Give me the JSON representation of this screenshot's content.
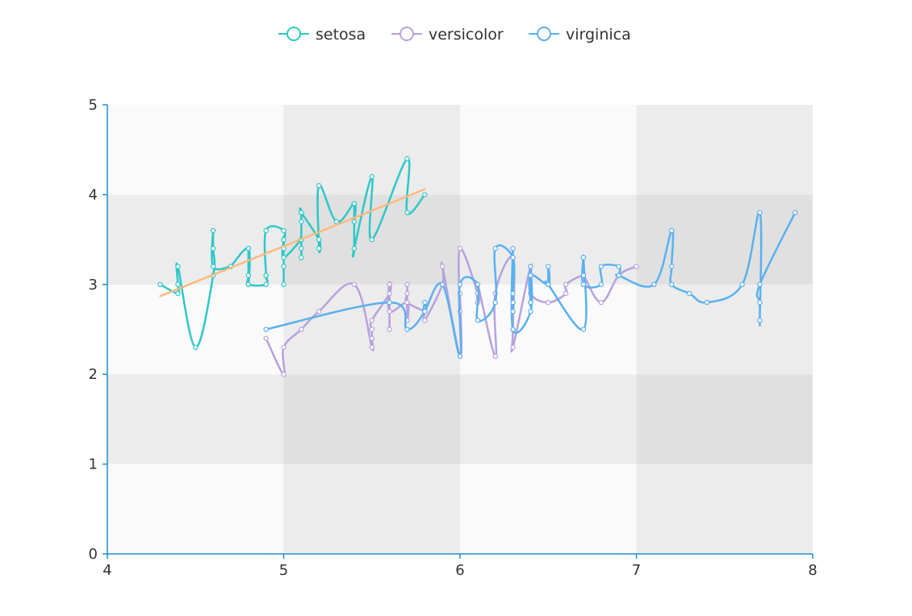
{
  "chart_data": {
    "type": "line",
    "title": "",
    "xlabel": "",
    "ylabel": "",
    "xlim": [
      4,
      8
    ],
    "ylim": [
      0,
      5
    ],
    "x_ticks": [
      "4",
      "5",
      "6",
      "7",
      "8"
    ],
    "y_ticks": [
      "0",
      "1",
      "2",
      "3",
      "4",
      "5"
    ],
    "grid": "alternating checkerboard cell shading",
    "legend_position": "top-center",
    "colors": {
      "setosa": "#2ec7c9",
      "versicolor": "#b6a2de",
      "virginica": "#5ab1ef",
      "trend": "#ffb980",
      "axis": "#1e90c8",
      "axis_text": "#333333",
      "cell_a": "#fafafa",
      "cell_b": "#ececec",
      "cell_c": "#e0e0e0"
    },
    "series": [
      {
        "name": "setosa",
        "points": [
          [
            5.1,
            3.5
          ],
          [
            4.9,
            3.0
          ],
          [
            4.7,
            3.2
          ],
          [
            4.6,
            3.1
          ],
          [
            5.0,
            3.6
          ],
          [
            5.4,
            3.9
          ],
          [
            4.6,
            3.4
          ],
          [
            5.0,
            3.4
          ],
          [
            4.4,
            2.9
          ],
          [
            4.9,
            3.1
          ],
          [
            5.4,
            3.7
          ],
          [
            4.8,
            3.4
          ],
          [
            4.8,
            3.0
          ],
          [
            4.3,
            3.0
          ],
          [
            5.8,
            4.0
          ],
          [
            5.7,
            4.4
          ],
          [
            5.4,
            3.9
          ],
          [
            5.1,
            3.5
          ],
          [
            5.7,
            3.8
          ],
          [
            5.1,
            3.8
          ],
          [
            5.4,
            3.4
          ],
          [
            5.1,
            3.7
          ],
          [
            4.6,
            3.6
          ],
          [
            5.1,
            3.3
          ],
          [
            4.8,
            3.4
          ],
          [
            5.0,
            3.0
          ],
          [
            5.0,
            3.4
          ],
          [
            5.2,
            3.5
          ],
          [
            5.2,
            3.4
          ],
          [
            4.7,
            3.2
          ],
          [
            4.8,
            3.1
          ],
          [
            5.4,
            3.4
          ],
          [
            5.2,
            4.1
          ],
          [
            5.5,
            4.2
          ],
          [
            4.9,
            3.1
          ],
          [
            5.0,
            3.2
          ],
          [
            5.5,
            3.5
          ],
          [
            4.9,
            3.6
          ],
          [
            4.4,
            3.0
          ],
          [
            5.1,
            3.4
          ],
          [
            5.0,
            3.5
          ],
          [
            4.5,
            2.3
          ],
          [
            4.4,
            3.2
          ],
          [
            5.0,
            3.5
          ],
          [
            5.1,
            3.8
          ],
          [
            4.8,
            3.0
          ],
          [
            5.1,
            3.8
          ],
          [
            4.6,
            3.2
          ],
          [
            5.3,
            3.7
          ],
          [
            5.0,
            3.3
          ]
        ]
      },
      {
        "name": "versicolor",
        "points": [
          [
            7.0,
            3.2
          ],
          [
            6.4,
            3.2
          ],
          [
            6.9,
            3.1
          ],
          [
            5.5,
            2.3
          ],
          [
            6.5,
            2.8
          ],
          [
            5.7,
            2.8
          ],
          [
            6.3,
            3.3
          ],
          [
            4.9,
            2.4
          ],
          [
            6.6,
            2.9
          ],
          [
            5.2,
            2.7
          ],
          [
            5.0,
            2.0
          ],
          [
            5.9,
            3.0
          ],
          [
            6.0,
            2.2
          ],
          [
            6.1,
            2.9
          ],
          [
            5.6,
            2.9
          ],
          [
            6.7,
            3.1
          ],
          [
            5.6,
            3.0
          ],
          [
            5.8,
            2.7
          ],
          [
            6.2,
            2.2
          ],
          [
            5.6,
            2.5
          ],
          [
            5.9,
            3.2
          ],
          [
            6.1,
            2.8
          ],
          [
            6.3,
            2.5
          ],
          [
            6.1,
            2.8
          ],
          [
            6.4,
            2.9
          ],
          [
            6.6,
            3.0
          ],
          [
            6.8,
            2.8
          ],
          [
            6.7,
            3.0
          ],
          [
            6.0,
            2.9
          ],
          [
            5.7,
            2.6
          ],
          [
            5.5,
            2.4
          ],
          [
            5.5,
            2.4
          ],
          [
            5.8,
            2.7
          ],
          [
            6.0,
            2.7
          ],
          [
            5.4,
            3.0
          ],
          [
            6.0,
            3.4
          ],
          [
            6.7,
            3.1
          ],
          [
            6.3,
            2.3
          ],
          [
            5.6,
            3.0
          ],
          [
            5.5,
            2.5
          ],
          [
            5.5,
            2.6
          ],
          [
            6.1,
            3.0
          ],
          [
            5.8,
            2.6
          ],
          [
            5.0,
            2.3
          ],
          [
            5.6,
            2.7
          ],
          [
            5.7,
            3.0
          ],
          [
            5.7,
            2.9
          ],
          [
            6.2,
            2.9
          ],
          [
            5.1,
            2.5
          ],
          [
            5.7,
            2.8
          ]
        ]
      },
      {
        "name": "virginica",
        "points": [
          [
            6.3,
            3.3
          ],
          [
            5.8,
            2.7
          ],
          [
            7.1,
            3.0
          ],
          [
            6.3,
            2.9
          ],
          [
            6.5,
            3.0
          ],
          [
            7.6,
            3.0
          ],
          [
            4.9,
            2.5
          ],
          [
            7.3,
            2.9
          ],
          [
            6.7,
            2.5
          ],
          [
            7.2,
            3.6
          ],
          [
            6.5,
            3.2
          ],
          [
            6.4,
            2.7
          ],
          [
            6.8,
            3.0
          ],
          [
            5.7,
            2.5
          ],
          [
            5.8,
            2.8
          ],
          [
            6.4,
            3.2
          ],
          [
            6.5,
            3.0
          ],
          [
            7.7,
            3.8
          ],
          [
            7.7,
            2.6
          ],
          [
            6.0,
            2.2
          ],
          [
            6.9,
            3.2
          ],
          [
            5.6,
            2.8
          ],
          [
            7.7,
            2.8
          ],
          [
            6.3,
            2.7
          ],
          [
            6.7,
            3.3
          ],
          [
            7.2,
            3.2
          ],
          [
            6.2,
            2.8
          ],
          [
            6.1,
            3.0
          ],
          [
            6.4,
            2.8
          ],
          [
            7.2,
            3.0
          ],
          [
            7.4,
            2.8
          ],
          [
            7.9,
            3.8
          ],
          [
            6.4,
            2.8
          ],
          [
            6.3,
            2.8
          ],
          [
            6.1,
            2.6
          ],
          [
            7.7,
            3.0
          ],
          [
            6.3,
            3.4
          ],
          [
            6.4,
            3.1
          ],
          [
            6.0,
            3.0
          ],
          [
            6.9,
            3.1
          ],
          [
            6.7,
            3.1
          ],
          [
            6.9,
            3.1
          ],
          [
            5.8,
            2.7
          ],
          [
            6.8,
            3.2
          ],
          [
            6.7,
            3.3
          ],
          [
            6.7,
            3.0
          ],
          [
            6.3,
            2.5
          ],
          [
            6.5,
            3.0
          ],
          [
            6.2,
            3.4
          ],
          [
            5.9,
            3.0
          ]
        ]
      }
    ],
    "trend_line": {
      "series": "setosa",
      "from": [
        4.3,
        2.87
      ],
      "to": [
        5.8,
        4.06
      ]
    }
  }
}
